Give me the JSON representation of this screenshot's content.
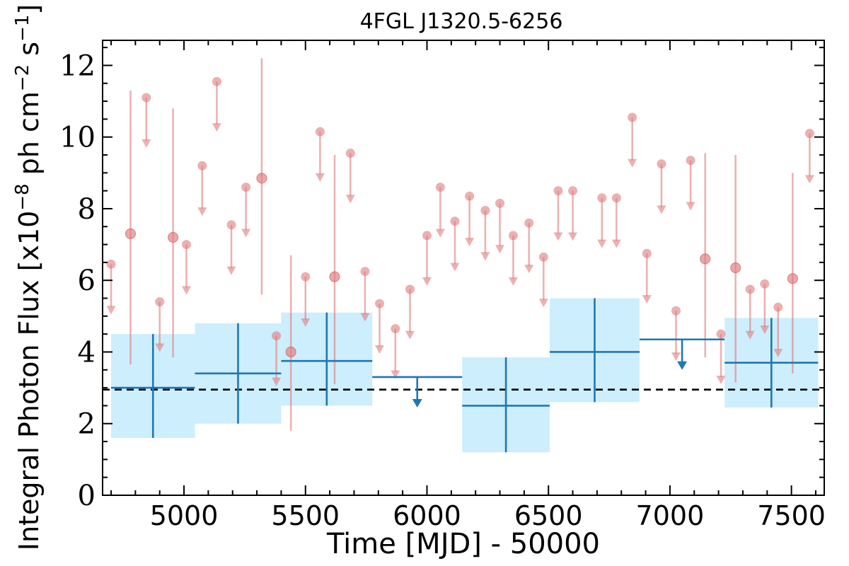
{
  "chart_data": {
    "type": "scatter",
    "title": "4FGL J1320.5-6256",
    "xlabel": "Time [MJD] - 50000",
    "ylabel": "Integral Photon Flux [x10",
    "ylabel_sup1": "−8",
    "ylabel_mid": " ph cm",
    "ylabel_sup2": "−2",
    "ylabel_mid2": " s",
    "ylabel_sup3": "−1",
    "ylabel_end": "]",
    "xlim": [
      4665,
      7635
    ],
    "ylim": [
      0,
      12.7
    ],
    "x_ticks": [
      5000,
      5500,
      6000,
      6500,
      7000,
      7500
    ],
    "y_ticks": [
      0,
      2,
      4,
      6,
      8,
      10,
      12
    ],
    "x_tick_labels": [
      "5000",
      "5500",
      "6000",
      "6500",
      "7000",
      "7500"
    ],
    "y_tick_labels": [
      "0",
      "2",
      "4",
      "6",
      "8",
      "10",
      "12"
    ],
    "mean_flux": 2.95,
    "colors": {
      "short_bins": "#e07b7b",
      "long_bins": "#1f77b4",
      "long_bin_box": "#cdeefc",
      "mean_line": "#000000"
    },
    "series": [
      {
        "kind": "short-bin-upper-limits",
        "points": [
          {
            "x": 4700,
            "y": 6.45
          },
          {
            "x": 4845,
            "y": 11.1
          },
          {
            "x": 4900,
            "y": 5.4
          },
          {
            "x": 5010,
            "y": 7.0
          },
          {
            "x": 5075,
            "y": 9.2
          },
          {
            "x": 5135,
            "y": 11.55
          },
          {
            "x": 5195,
            "y": 7.55
          },
          {
            "x": 5255,
            "y": 8.6
          },
          {
            "x": 5380,
            "y": 4.45
          },
          {
            "x": 5500,
            "y": 6.1
          },
          {
            "x": 5560,
            "y": 10.15
          },
          {
            "x": 5685,
            "y": 9.55
          },
          {
            "x": 5745,
            "y": 6.25
          },
          {
            "x": 5805,
            "y": 5.35
          },
          {
            "x": 5870,
            "y": 4.65
          },
          {
            "x": 5930,
            "y": 5.75
          },
          {
            "x": 6000,
            "y": 7.25
          },
          {
            "x": 6055,
            "y": 8.6
          },
          {
            "x": 6115,
            "y": 7.65
          },
          {
            "x": 6175,
            "y": 8.35
          },
          {
            "x": 6240,
            "y": 7.95
          },
          {
            "x": 6300,
            "y": 8.15
          },
          {
            "x": 6355,
            "y": 7.25
          },
          {
            "x": 6420,
            "y": 7.6
          },
          {
            "x": 6480,
            "y": 6.65
          },
          {
            "x": 6540,
            "y": 8.5
          },
          {
            "x": 6600,
            "y": 8.5
          },
          {
            "x": 6720,
            "y": 8.3
          },
          {
            "x": 6780,
            "y": 8.3
          },
          {
            "x": 6845,
            "y": 10.55
          },
          {
            "x": 6905,
            "y": 6.75
          },
          {
            "x": 6965,
            "y": 9.25
          },
          {
            "x": 7025,
            "y": 5.15
          },
          {
            "x": 7085,
            "y": 9.35
          },
          {
            "x": 7210,
            "y": 4.5
          },
          {
            "x": 7330,
            "y": 5.75
          },
          {
            "x": 7390,
            "y": 5.9
          },
          {
            "x": 7445,
            "y": 5.25
          },
          {
            "x": 7575,
            "y": 10.1
          }
        ]
      },
      {
        "kind": "short-bin-detections",
        "points": [
          {
            "x": 4780,
            "y": 7.3,
            "ylow": 3.65,
            "yhigh": 11.3
          },
          {
            "x": 4955,
            "y": 7.2,
            "ylow": 3.85,
            "yhigh": 10.8
          },
          {
            "x": 5320,
            "y": 8.85,
            "ylow": 5.6,
            "yhigh": 12.2
          },
          {
            "x": 5440,
            "y": 4.0,
            "ylow": 1.8,
            "yhigh": 6.7
          },
          {
            "x": 5620,
            "y": 6.1,
            "ylow": 3.1,
            "yhigh": 9.5
          },
          {
            "x": 7145,
            "y": 6.6,
            "ylow": 3.85,
            "yhigh": 9.55
          },
          {
            "x": 7270,
            "y": 6.35,
            "ylow": 3.15,
            "yhigh": 9.5
          },
          {
            "x": 7505,
            "y": 6.05,
            "ylow": 3.4,
            "yhigh": 9.0
          }
        ]
      },
      {
        "kind": "long-bin-detections",
        "bins": [
          {
            "x0": 4700,
            "x1": 5045,
            "y": 3.0,
            "ylow": 1.6,
            "yhigh": 4.5
          },
          {
            "x0": 5045,
            "x1": 5400,
            "y": 3.4,
            "ylow": 2.0,
            "yhigh": 4.8
          },
          {
            "x0": 5400,
            "x1": 5775,
            "y": 3.75,
            "ylow": 2.5,
            "yhigh": 5.1
          },
          {
            "x0": 6145,
            "x1": 6505,
            "y": 2.5,
            "ylow": 1.2,
            "yhigh": 3.85
          },
          {
            "x0": 6505,
            "x1": 6875,
            "y": 4.0,
            "ylow": 2.6,
            "yhigh": 5.5
          },
          {
            "x0": 7225,
            "x1": 7610,
            "y": 3.7,
            "ylow": 2.45,
            "yhigh": 4.95
          }
        ]
      },
      {
        "kind": "long-bin-upper-limits",
        "bins": [
          {
            "x0": 5775,
            "x1": 6145,
            "y": 3.3
          },
          {
            "x0": 6875,
            "x1": 7225,
            "y": 4.35
          }
        ]
      }
    ]
  }
}
